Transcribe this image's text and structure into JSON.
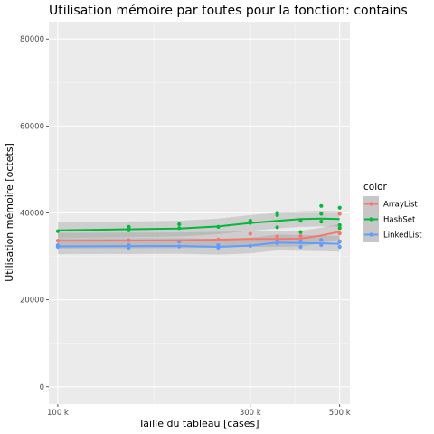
{
  "chart_data": {
    "type": "scatter",
    "title": "Utilisation mémoire par toutes pour la fonction: contains",
    "xlabel": "Taille du tableau [cases]",
    "ylabel": "Utilisation mémoire [octets]",
    "x_scale": "log",
    "xlim": [
      95000,
      530000
    ],
    "ylim": [
      -4000,
      84000
    ],
    "x_ticks": [
      100000,
      300000,
      500000
    ],
    "x_tick_labels": [
      "100 k",
      "300 k",
      "500 k"
    ],
    "y_ticks": [
      0,
      20000,
      40000,
      60000,
      80000
    ],
    "y_tick_labels": [
      "0",
      "20000",
      "40000",
      "60000",
      "80000"
    ],
    "grid": true,
    "smoothing": "loess with confidence band",
    "legend": {
      "title": "color",
      "position": "right"
    },
    "series": [
      {
        "name": "ArrayList",
        "color": "#F8766D",
        "points": [
          {
            "x": 100000,
            "y": 33600
          },
          {
            "x": 150000,
            "y": 33700
          },
          {
            "x": 200000,
            "y": 33500
          },
          {
            "x": 250000,
            "y": 33900
          },
          {
            "x": 300000,
            "y": 35200
          },
          {
            "x": 350000,
            "y": 34600
          },
          {
            "x": 400000,
            "y": 34700
          },
          {
            "x": 450000,
            "y": 33800
          },
          {
            "x": 500000,
            "y": 39800
          },
          {
            "x": 500000,
            "y": 35300
          },
          {
            "x": 500000,
            "y": 33500
          }
        ],
        "trend": [
          {
            "x": 100000,
            "y": 33600
          },
          {
            "x": 200000,
            "y": 33700
          },
          {
            "x": 300000,
            "y": 34000
          },
          {
            "x": 350000,
            "y": 34000
          },
          {
            "x": 400000,
            "y": 34100
          },
          {
            "x": 450000,
            "y": 34800
          },
          {
            "x": 500000,
            "y": 35700
          }
        ]
      },
      {
        "name": "HashSet",
        "color": "#00BA38",
        "points": [
          {
            "x": 100000,
            "y": 35800
          },
          {
            "x": 150000,
            "y": 36800
          },
          {
            "x": 150000,
            "y": 36000
          },
          {
            "x": 200000,
            "y": 37400
          },
          {
            "x": 200000,
            "y": 36500
          },
          {
            "x": 250000,
            "y": 36800
          },
          {
            "x": 300000,
            "y": 38200
          },
          {
            "x": 300000,
            "y": 37700
          },
          {
            "x": 350000,
            "y": 40000
          },
          {
            "x": 350000,
            "y": 39500
          },
          {
            "x": 350000,
            "y": 36700
          },
          {
            "x": 400000,
            "y": 38200
          },
          {
            "x": 400000,
            "y": 35600
          },
          {
            "x": 450000,
            "y": 41600
          },
          {
            "x": 450000,
            "y": 39800
          },
          {
            "x": 450000,
            "y": 38000
          },
          {
            "x": 500000,
            "y": 41200
          },
          {
            "x": 500000,
            "y": 37200
          },
          {
            "x": 500000,
            "y": 36500
          }
        ],
        "trend": [
          {
            "x": 100000,
            "y": 36000
          },
          {
            "x": 200000,
            "y": 36400
          },
          {
            "x": 250000,
            "y": 36900
          },
          {
            "x": 300000,
            "y": 37700
          },
          {
            "x": 350000,
            "y": 38200
          },
          {
            "x": 400000,
            "y": 38600
          },
          {
            "x": 450000,
            "y": 38700
          },
          {
            "x": 500000,
            "y": 38600
          }
        ]
      },
      {
        "name": "LinkedList",
        "color": "#619CFF",
        "points": [
          {
            "x": 100000,
            "y": 32600
          },
          {
            "x": 100000,
            "y": 32200
          },
          {
            "x": 150000,
            "y": 32600
          },
          {
            "x": 150000,
            "y": 32000
          },
          {
            "x": 200000,
            "y": 33400
          },
          {
            "x": 200000,
            "y": 32300
          },
          {
            "x": 250000,
            "y": 32600
          },
          {
            "x": 250000,
            "y": 32000
          },
          {
            "x": 300000,
            "y": 32400
          },
          {
            "x": 350000,
            "y": 33800
          },
          {
            "x": 350000,
            "y": 33000
          },
          {
            "x": 400000,
            "y": 33500
          },
          {
            "x": 400000,
            "y": 32200
          },
          {
            "x": 450000,
            "y": 33800
          },
          {
            "x": 450000,
            "y": 32600
          },
          {
            "x": 500000,
            "y": 33400
          },
          {
            "x": 500000,
            "y": 32200
          }
        ],
        "trend": [
          {
            "x": 100000,
            "y": 32300
          },
          {
            "x": 200000,
            "y": 32400
          },
          {
            "x": 250000,
            "y": 32200
          },
          {
            "x": 300000,
            "y": 32500
          },
          {
            "x": 350000,
            "y": 33200
          },
          {
            "x": 400000,
            "y": 33100
          },
          {
            "x": 450000,
            "y": 33000
          },
          {
            "x": 500000,
            "y": 32900
          }
        ]
      }
    ]
  }
}
